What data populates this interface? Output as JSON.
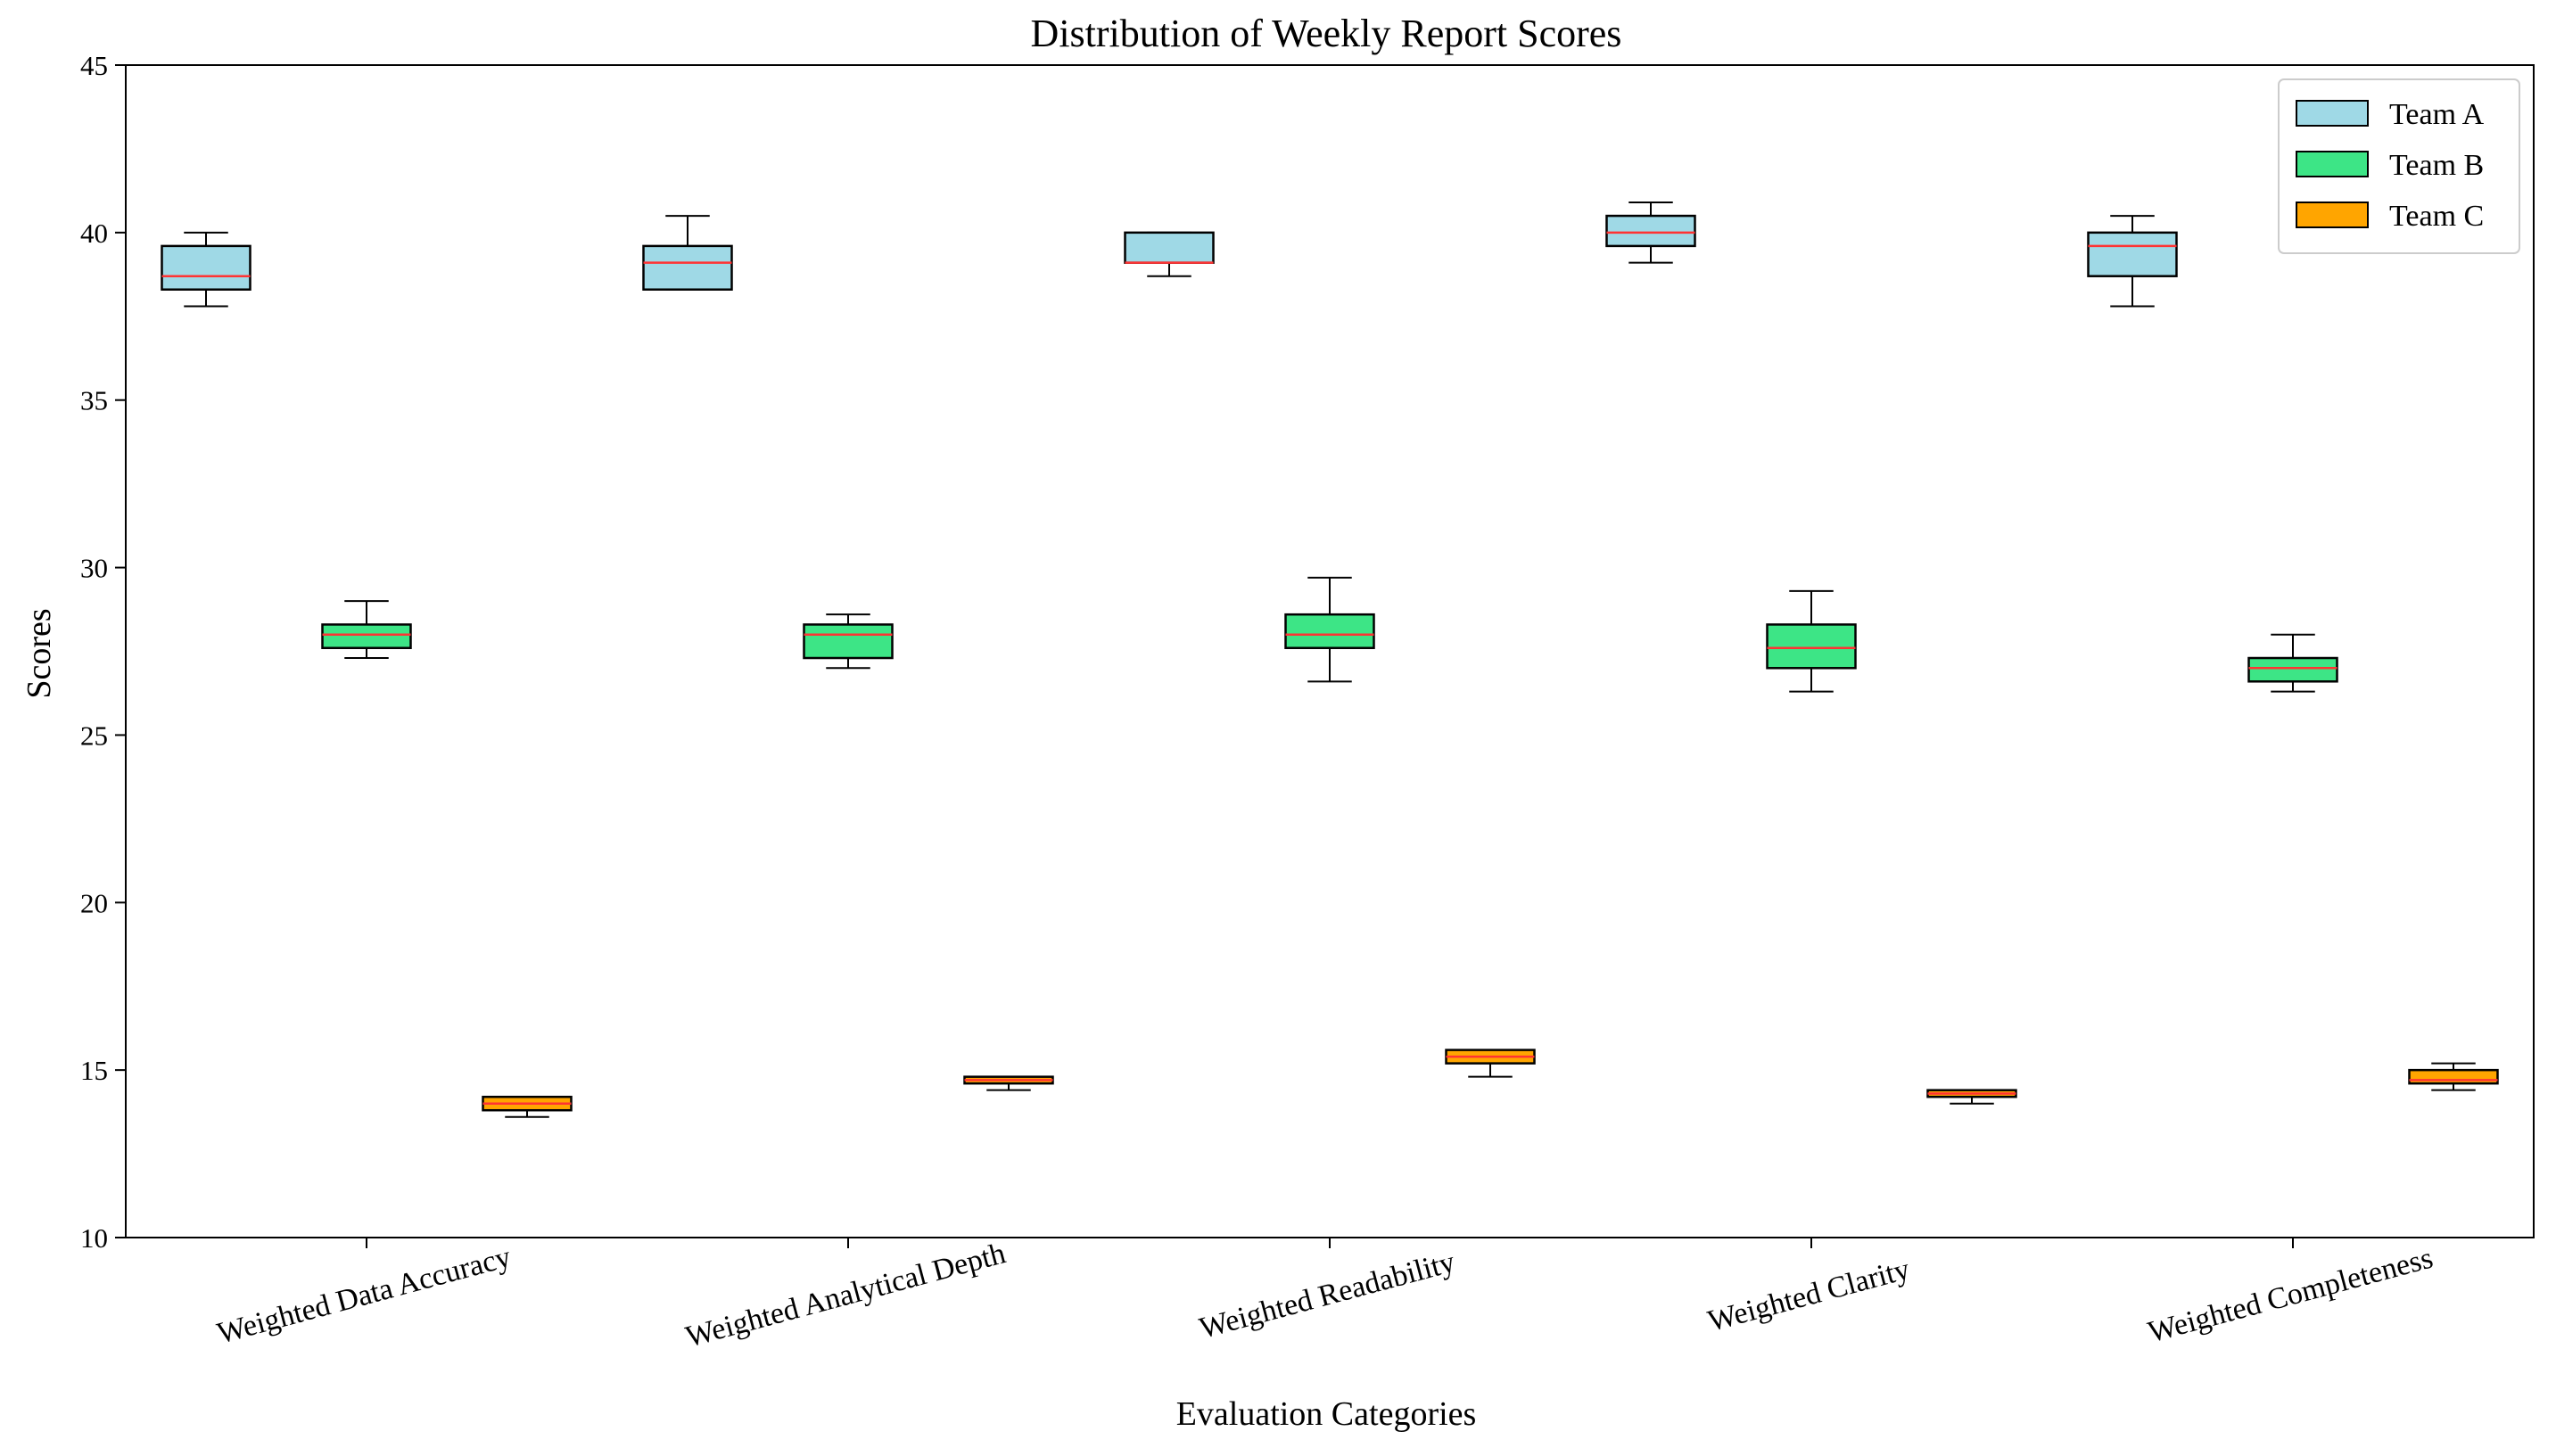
{
  "chart_data": {
    "type": "box",
    "title": "Distribution of Weekly Report Scores",
    "xlabel": "Evaluation Categories",
    "ylabel": "Scores",
    "ylim": [
      10,
      45
    ],
    "yticks": [
      10,
      15,
      20,
      25,
      30,
      35,
      40,
      45
    ],
    "categories": [
      "Weighted Data Accuracy",
      "Weighted Analytical Depth",
      "Weighted Readability",
      "Weighted Clarity",
      "Weighted Completeness"
    ],
    "legend_position": "top-right",
    "series": [
      {
        "name": "Team A",
        "color": "#9fd9e6",
        "median_color": "#ff3333",
        "boxes": [
          {
            "whislo": 37.8,
            "q1": 38.3,
            "med": 38.7,
            "q3": 39.6,
            "whishi": 40.0
          },
          {
            "whislo": 38.3,
            "q1": 38.3,
            "med": 39.1,
            "q3": 39.6,
            "whishi": 40.5
          },
          {
            "whislo": 38.7,
            "q1": 39.1,
            "med": 39.1,
            "q3": 40.0,
            "whishi": 40.0
          },
          {
            "whislo": 39.1,
            "q1": 39.6,
            "med": 40.0,
            "q3": 40.5,
            "whishi": 40.9
          },
          {
            "whislo": 37.8,
            "q1": 38.7,
            "med": 39.6,
            "q3": 40.0,
            "whishi": 40.5
          }
        ]
      },
      {
        "name": "Team B",
        "color": "#3de586",
        "median_color": "#ff3333",
        "boxes": [
          {
            "whislo": 27.3,
            "q1": 27.6,
            "med": 28.0,
            "q3": 28.3,
            "whishi": 29.0
          },
          {
            "whislo": 27.0,
            "q1": 27.3,
            "med": 28.0,
            "q3": 28.3,
            "whishi": 28.6
          },
          {
            "whislo": 26.6,
            "q1": 27.6,
            "med": 28.0,
            "q3": 28.6,
            "whishi": 29.7
          },
          {
            "whislo": 26.3,
            "q1": 27.0,
            "med": 27.6,
            "q3": 28.3,
            "whishi": 29.3
          },
          {
            "whislo": 26.3,
            "q1": 26.6,
            "med": 27.0,
            "q3": 27.3,
            "whishi": 28.0
          }
        ]
      },
      {
        "name": "Team C",
        "color": "#ffa500",
        "median_color": "#ff3333",
        "boxes": [
          {
            "whislo": 13.6,
            "q1": 13.8,
            "med": 14.0,
            "q3": 14.2,
            "whishi": 14.2
          },
          {
            "whislo": 14.4,
            "q1": 14.6,
            "med": 14.7,
            "q3": 14.8,
            "whishi": 14.8
          },
          {
            "whislo": 14.8,
            "q1": 15.2,
            "med": 15.4,
            "q3": 15.6,
            "whishi": 15.6
          },
          {
            "whislo": 14.0,
            "q1": 14.2,
            "med": 14.3,
            "q3": 14.4,
            "whishi": 14.4
          },
          {
            "whislo": 14.4,
            "q1": 14.6,
            "med": 14.7,
            "q3": 15.0,
            "whishi": 15.2
          }
        ]
      }
    ]
  }
}
